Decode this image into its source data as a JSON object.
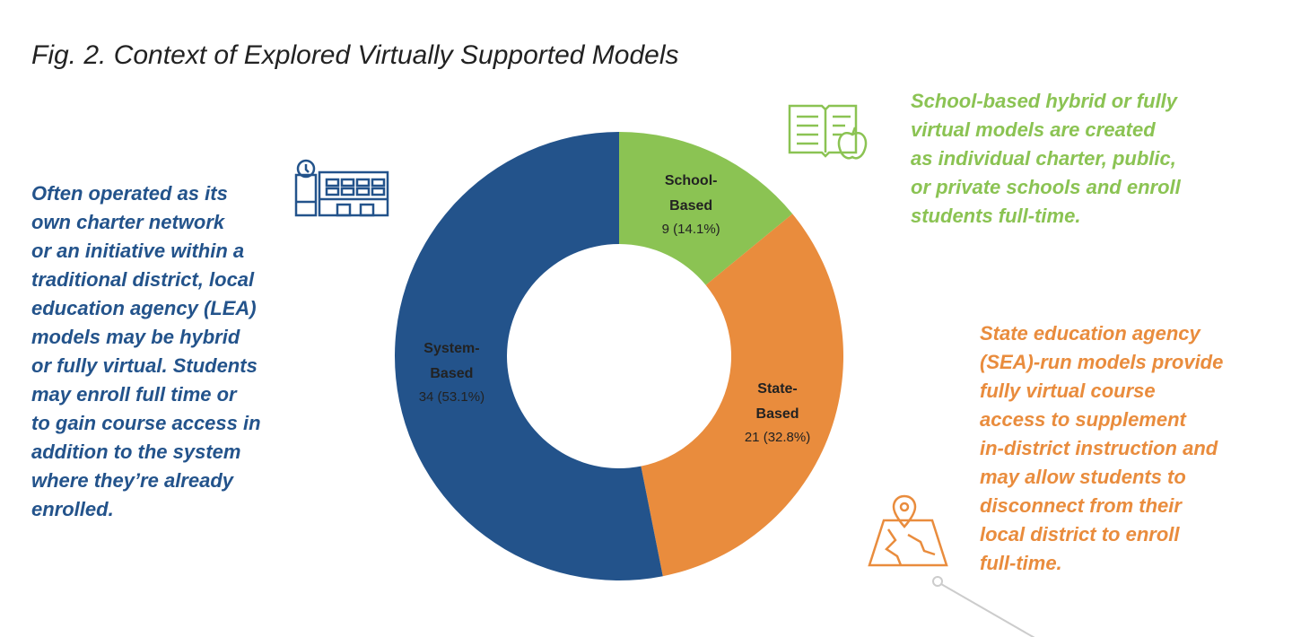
{
  "chart_data": {
    "type": "pie",
    "donut": true,
    "title": "Fig. 2. Context of Explored Virtually Supported Models",
    "categories": [
      "School-Based",
      "State-Based",
      "System-Based"
    ],
    "values": [
      9,
      21,
      34
    ],
    "value_labels": [
      "9 (14.1%)",
      "21 (32.8%)",
      "34 (53.1%)"
    ],
    "colors": [
      "#8bc353",
      "#e98c3d",
      "#23538b"
    ],
    "annotations": [
      {
        "color": "#23538b",
        "lines": [
          "Often operated as its",
          "own charter network",
          "or an initiative within a",
          "traditional district, local",
          "education agency (LEA)",
          "models may be hybrid",
          "or fully virtual. Students",
          "may enroll full time or",
          "to gain course access in",
          "addition to the system",
          "where they’re already",
          "enrolled."
        ]
      },
      {
        "color": "#8bc353",
        "lines": [
          "School-based hybrid or fully",
          "virtual models are created",
          "as individual charter, public,",
          "or private schools and enroll",
          "students full-time."
        ]
      },
      {
        "color": "#e98c3d",
        "lines": [
          "State education agency",
          "(SEA)-run models provide",
          "fully virtual course",
          "access to supplement",
          "in-district instruction and",
          "may allow students to",
          "disconnect from their",
          "local district to enroll",
          "full-time."
        ]
      }
    ]
  }
}
